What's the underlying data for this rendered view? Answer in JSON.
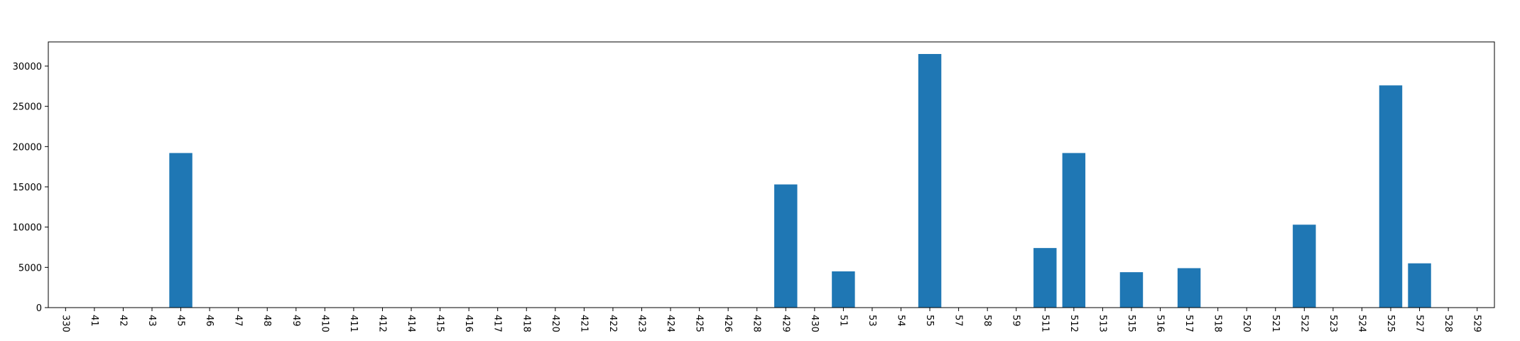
{
  "chart_data": {
    "type": "bar",
    "title": "",
    "xlabel": "",
    "ylabel": "",
    "categories": [
      "330",
      "41",
      "42",
      "43",
      "45",
      "46",
      "47",
      "48",
      "49",
      "410",
      "411",
      "412",
      "414",
      "415",
      "416",
      "417",
      "418",
      "420",
      "421",
      "422",
      "423",
      "424",
      "425",
      "426",
      "428",
      "429",
      "430",
      "51",
      "53",
      "54",
      "55",
      "57",
      "58",
      "59",
      "511",
      "512",
      "513",
      "515",
      "516",
      "517",
      "518",
      "520",
      "521",
      "522",
      "523",
      "524",
      "525",
      "527",
      "528",
      "529"
    ],
    "values": [
      0,
      0,
      0,
      0,
      19200,
      0,
      0,
      0,
      0,
      0,
      0,
      0,
      0,
      0,
      0,
      0,
      0,
      0,
      0,
      0,
      0,
      0,
      0,
      0,
      0,
      15300,
      0,
      4500,
      0,
      0,
      31500,
      0,
      0,
      0,
      7400,
      19200,
      0,
      4400,
      0,
      4900,
      0,
      0,
      0,
      10300,
      0,
      0,
      27600,
      5500,
      0,
      0
    ],
    "ylim": [
      0,
      33000
    ],
    "yticks": [
      0,
      5000,
      10000,
      15000,
      20000,
      25000,
      30000
    ],
    "ytick_labels": [
      "0",
      "5000",
      "10000",
      "15000",
      "20000",
      "25000",
      "30000"
    ],
    "grid": false,
    "colors": {
      "bar": "#1f77b4"
    }
  }
}
